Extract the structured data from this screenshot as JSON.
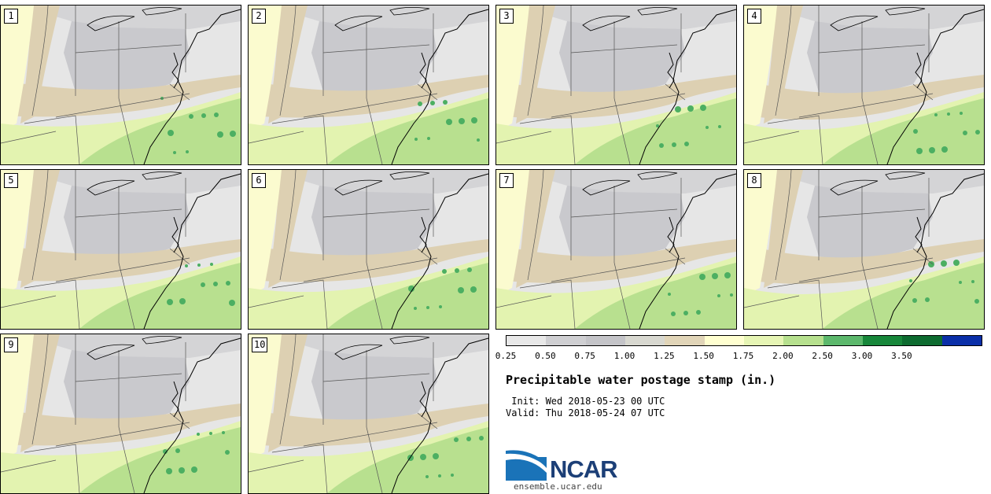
{
  "panels": [
    {
      "label": "1"
    },
    {
      "label": "2"
    },
    {
      "label": "3"
    },
    {
      "label": "4"
    },
    {
      "label": "5"
    },
    {
      "label": "6"
    },
    {
      "label": "7"
    },
    {
      "label": "8"
    },
    {
      "label": "9"
    },
    {
      "label": "10"
    }
  ],
  "colorbar": {
    "ticks": [
      "0.25",
      "0.50",
      "0.75",
      "1.00",
      "1.25",
      "1.50",
      "1.75",
      "2.00",
      "2.50",
      "3.00",
      "3.50"
    ],
    "colors": [
      "#e8e8e8",
      "#cfcfd2",
      "#c4c4c8",
      "#d8d8d0",
      "#e1d5b8",
      "#ffffd0",
      "#e6f5b4",
      "#b6e08e",
      "#5cb86c",
      "#17873a",
      "#0d6b30",
      "#0a2fa8"
    ]
  },
  "title": "Precipitable water postage stamp (in.)",
  "init": " Init: Wed 2018-05-23 00 UTC",
  "valid": "Valid: Thu 2018-05-24 07 UTC",
  "logo": {
    "text": "NCAR",
    "color": "#1c3f77",
    "swoosh": "#1a73b8"
  },
  "site": "ensemble.ucar.edu"
}
